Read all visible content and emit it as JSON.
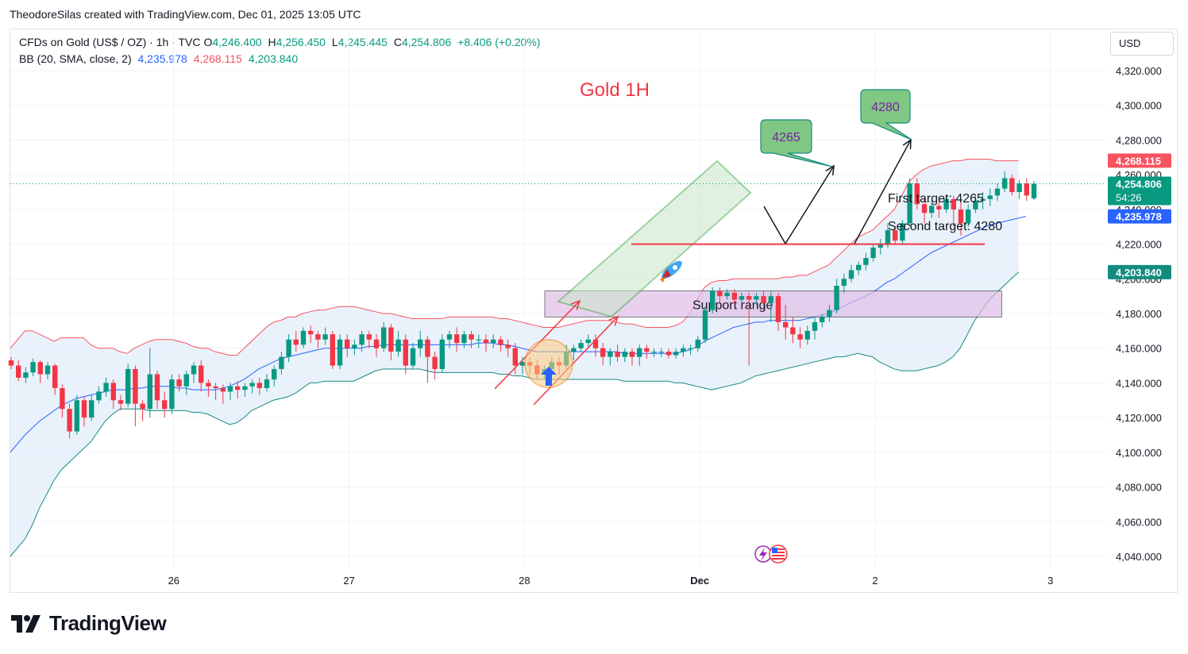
{
  "header": {
    "caption": "TheodoreSilas created with TradingView.com, Dec 01, 2025 13:05 UTC"
  },
  "legend": {
    "symbol": "CFDs on Gold (US$ / OZ) · 1h · TVC",
    "o_label": "O",
    "o_value": "4,246.400",
    "h_label": "H",
    "h_value": "4,256.450",
    "l_label": "L",
    "l_value": "4,245.445",
    "c_label": "C",
    "c_value": "4,254.806",
    "change": "+8.406 (+0.20%)",
    "bb_label": "BB (20, SMA, close, 2)",
    "bb_basis": "4,235.978",
    "bb_upper": "4,268.115",
    "bb_lower": "4,203.840"
  },
  "currency": "USD",
  "brand": "TradingView",
  "colors": {
    "up": "#089981",
    "down": "#f23645",
    "basis": "#2962ff",
    "upper": "#f7525f",
    "lower": "#089981",
    "band_fill": "#e3eefa",
    "channel": "#4caf50",
    "support": "#e1bee7",
    "target_line": "#f23645",
    "label_fill": "#81c784"
  },
  "chart_data": {
    "type": "candlestick",
    "title": "Gold 1H",
    "ylim": [
      4030,
      4330
    ],
    "y_ticks": [
      "4,320.000",
      "4,300.000",
      "4,280.000",
      "4,260.000",
      "4,240.000",
      "4,220.000",
      "4,200.000",
      "4,180.000",
      "4,160.000",
      "4,140.000",
      "4,120.000",
      "4,100.000",
      "4,080.000",
      "4,060.000",
      "4,040.000"
    ],
    "y_tick_values": [
      4320,
      4300,
      4280,
      4260,
      4240,
      4220,
      4200,
      4180,
      4160,
      4140,
      4120,
      4100,
      4080,
      4060,
      4040
    ],
    "x_ticks": [
      "26",
      "27",
      "28",
      "Dec",
      "2",
      "3"
    ],
    "x_tick_hours": [
      24,
      48,
      72,
      96,
      120,
      144
    ],
    "last_price": 4254.806,
    "last_price_label": "4,254.806",
    "countdown": "54:26",
    "price_tags": [
      {
        "value": 4268.115,
        "label": "4,268.115",
        "color": "#f7525f"
      },
      {
        "value": 4235.978,
        "label": "4,235.978",
        "color": "#2962ff"
      },
      {
        "value": 4203.84,
        "label": "4,203.840",
        "color": "#138c7f"
      }
    ],
    "candles": [
      [
        4153,
        4150,
        4148,
        4155
      ],
      [
        4150,
        4143,
        4141,
        4153
      ],
      [
        4143,
        4146,
        4140,
        4149
      ],
      [
        4146,
        4152,
        4144,
        4154
      ],
      [
        4152,
        4145,
        4140,
        4153
      ],
      [
        4145,
        4150,
        4142,
        4152
      ],
      [
        4150,
        4137,
        4133,
        4151
      ],
      [
        4137,
        4125,
        4120,
        4139
      ],
      [
        4125,
        4112,
        4108,
        4128
      ],
      [
        4112,
        4130,
        4110,
        4133
      ],
      [
        4130,
        4120,
        4115,
        4132
      ],
      [
        4120,
        4130,
        4118,
        4133
      ],
      [
        4130,
        4135,
        4128,
        4138
      ],
      [
        4135,
        4140,
        4132,
        4143
      ],
      [
        4140,
        4130,
        4125,
        4142
      ],
      [
        4130,
        4128,
        4124,
        4133
      ],
      [
        4128,
        4148,
        4126,
        4151
      ],
      [
        4148,
        4128,
        4115,
        4150
      ],
      [
        4128,
        4125,
        4118,
        4130
      ],
      [
        4125,
        4145,
        4120,
        4160
      ],
      [
        4145,
        4130,
        4125,
        4147
      ],
      [
        4130,
        4125,
        4120,
        4135
      ],
      [
        4125,
        4142,
        4122,
        4145
      ],
      [
        4142,
        4138,
        4135,
        4145
      ],
      [
        4138,
        4145,
        4133,
        4147
      ],
      [
        4145,
        4150,
        4140,
        4152
      ],
      [
        4150,
        4140,
        4135,
        4153
      ],
      [
        4140,
        4138,
        4132,
        4142
      ],
      [
        4138,
        4137,
        4130,
        4140
      ],
      [
        4137,
        4135,
        4128,
        4139
      ],
      [
        4135,
        4138,
        4130,
        4140
      ],
      [
        4138,
        4136,
        4131,
        4141
      ],
      [
        4136,
        4138,
        4132,
        4140
      ],
      [
        4138,
        4140,
        4134,
        4142
      ],
      [
        4140,
        4137,
        4133,
        4143
      ],
      [
        4137,
        4142,
        4135,
        4145
      ],
      [
        4142,
        4148,
        4138,
        4150
      ],
      [
        4148,
        4155,
        4145,
        4158
      ],
      [
        4155,
        4165,
        4152,
        4168
      ],
      [
        4165,
        4162,
        4158,
        4170
      ],
      [
        4162,
        4170,
        4160,
        4172
      ],
      [
        4170,
        4168,
        4163,
        4173
      ],
      [
        4168,
        4165,
        4160,
        4170
      ],
      [
        4165,
        4168,
        4162,
        4172
      ],
      [
        4168,
        4150,
        4148,
        4170
      ],
      [
        4150,
        4165,
        4148,
        4168
      ],
      [
        4165,
        4160,
        4155,
        4168
      ],
      [
        4160,
        4162,
        4156,
        4165
      ],
      [
        4162,
        4168,
        4158,
        4170
      ],
      [
        4168,
        4165,
        4160,
        4170
      ],
      [
        4165,
        4160,
        4155,
        4168
      ],
      [
        4160,
        4172,
        4158,
        4175
      ],
      [
        4172,
        4158,
        4153,
        4174
      ],
      [
        4158,
        4165,
        4155,
        4170
      ],
      [
        4165,
        4150,
        4145,
        4168
      ],
      [
        4150,
        4160,
        4148,
        4163
      ],
      [
        4160,
        4165,
        4155,
        4170
      ],
      [
        4165,
        4155,
        4140,
        4167
      ],
      [
        4155,
        4148,
        4142,
        4158
      ],
      [
        4148,
        4165,
        4146,
        4168
      ],
      [
        4165,
        4168,
        4160,
        4170
      ],
      [
        4168,
        4163,
        4158,
        4172
      ],
      [
        4163,
        4168,
        4160,
        4170
      ],
      [
        4168,
        4165,
        4160,
        4170
      ],
      [
        4165,
        4165,
        4160,
        4168
      ],
      [
        4165,
        4163,
        4158,
        4168
      ],
      [
        4163,
        4165,
        4160,
        4168
      ],
      [
        4165,
        4162,
        4158,
        4167
      ],
      [
        4162,
        4160,
        4155,
        4165
      ],
      [
        4160,
        4150,
        4145,
        4163
      ],
      [
        4150,
        4152,
        4145,
        4155
      ],
      [
        4152,
        4150,
        4145,
        4155
      ],
      [
        4150,
        4145,
        4142,
        4153
      ],
      [
        4145,
        4148,
        4142,
        4150
      ],
      [
        4148,
        4152,
        4145,
        4155
      ],
      [
        4152,
        4150,
        4145,
        4155
      ],
      [
        4150,
        4158,
        4148,
        4162
      ],
      [
        4158,
        4160,
        4153,
        4162
      ],
      [
        4160,
        4163,
        4158,
        4165
      ],
      [
        4163,
        4165,
        4160,
        4168
      ],
      [
        4165,
        4160,
        4155,
        4168
      ],
      [
        4160,
        4155,
        4150,
        4163
      ],
      [
        4155,
        4158,
        4150,
        4160
      ],
      [
        4158,
        4155,
        4152,
        4162
      ],
      [
        4155,
        4158,
        4152,
        4160
      ],
      [
        4158,
        4155,
        4150,
        4160
      ],
      [
        4155,
        4160,
        4150,
        4162
      ],
      [
        4160,
        4158,
        4154,
        4162
      ],
      [
        4158,
        4158,
        4155,
        4160
      ],
      [
        4158,
        4158,
        4155,
        4160
      ],
      [
        4158,
        4156,
        4154,
        4160
      ],
      [
        4156,
        4158,
        4154,
        4160
      ],
      [
        4158,
        4160,
        4155,
        4162
      ],
      [
        4160,
        4160,
        4156,
        4162
      ],
      [
        4160,
        4165,
        4158,
        4167
      ],
      [
        4165,
        4182,
        4163,
        4184
      ],
      [
        4182,
        4193,
        4180,
        4195
      ],
      [
        4193,
        4190,
        4186,
        4195
      ],
      [
        4190,
        4192,
        4188,
        4194
      ],
      [
        4192,
        4188,
        4185,
        4194
      ],
      [
        4188,
        4190,
        4186,
        4192
      ],
      [
        4190,
        4188,
        4150,
        4192
      ],
      [
        4188,
        4190,
        4185,
        4192
      ],
      [
        4190,
        4186,
        4182,
        4193
      ],
      [
        4186,
        4190,
        4175,
        4193
      ],
      [
        4190,
        4175,
        4170,
        4192
      ],
      [
        4175,
        4172,
        4165,
        4185
      ],
      [
        4172,
        4168,
        4163,
        4178
      ],
      [
        4168,
        4165,
        4160,
        4172
      ],
      [
        4165,
        4170,
        4162,
        4173
      ],
      [
        4170,
        4175,
        4165,
        4178
      ],
      [
        4175,
        4178,
        4172,
        4180
      ],
      [
        4178,
        4182,
        4175,
        4185
      ],
      [
        4182,
        4196,
        4180,
        4200
      ],
      [
        4196,
        4200,
        4192,
        4203
      ],
      [
        4200,
        4205,
        4198,
        4208
      ],
      [
        4205,
        4208,
        4202,
        4210
      ],
      [
        4208,
        4212,
        4205,
        4215
      ],
      [
        4212,
        4218,
        4210,
        4220
      ],
      [
        4218,
        4220,
        4214,
        4223
      ],
      [
        4220,
        4228,
        4218,
        4232
      ],
      [
        4228,
        4222,
        4220,
        4230
      ],
      [
        4222,
        4232,
        4220,
        4234
      ],
      [
        4232,
        4255,
        4230,
        4258
      ],
      [
        4255,
        4243,
        4240,
        4258
      ],
      [
        4243,
        4238,
        4232,
        4246
      ],
      [
        4238,
        4242,
        4235,
        4245
      ],
      [
        4242,
        4240,
        4235,
        4245
      ],
      [
        4240,
        4246,
        4238,
        4248
      ],
      [
        4246,
        4240,
        4230,
        4248
      ],
      [
        4240,
        4232,
        4225,
        4245
      ],
      [
        4232,
        4240,
        4230,
        4243
      ],
      [
        4240,
        4245,
        4238,
        4248
      ],
      [
        4245,
        4246,
        4240,
        4250
      ],
      [
        4246,
        4248,
        4242,
        4252
      ],
      [
        4248,
        4252,
        4245,
        4255
      ],
      [
        4252,
        4258,
        4250,
        4262
      ],
      [
        4258,
        4250,
        4248,
        4260
      ],
      [
        4250,
        4255,
        4246,
        4257
      ],
      [
        4255,
        4248,
        4245,
        4258
      ],
      [
        4246.4,
        4254.806,
        4245.445,
        4256.45
      ]
    ],
    "bands": {
      "start_hour": 0,
      "upper": [
        4160,
        4165,
        4170,
        4170,
        4168,
        4166,
        4164,
        4166,
        4166,
        4166,
        4166,
        4162,
        4160,
        4160,
        4160,
        4158,
        4157,
        4160,
        4162,
        4164,
        4165,
        4165,
        4165,
        4164,
        4163,
        4161,
        4160,
        4160,
        4158,
        4157,
        4156,
        4156,
        4160,
        4164,
        4168,
        4172,
        4175,
        4176,
        4178,
        4178,
        4180,
        4181,
        4182,
        4182,
        4183,
        4184,
        4184,
        4184,
        4183,
        4182,
        4181,
        4180,
        4180,
        4179,
        4178,
        4177,
        4177,
        4177,
        4177,
        4177,
        4178,
        4178,
        4178,
        4178,
        4178,
        4178,
        4178,
        4177,
        4177,
        4176,
        4175,
        4174,
        4173,
        4172,
        4172,
        4172,
        4173,
        4174,
        4175,
        4176,
        4176,
        4176,
        4176,
        4175,
        4174,
        4174,
        4173,
        4172,
        4172,
        4172,
        4172,
        4173,
        4175,
        4180,
        4188,
        4195,
        4198,
        4199,
        4199,
        4200,
        4200,
        4200,
        4200,
        4200,
        4200,
        4200,
        4201,
        4201,
        4202,
        4202,
        4204,
        4206,
        4208,
        4212,
        4216,
        4220,
        4224,
        4226,
        4228,
        4232,
        4236,
        4240,
        4248,
        4256,
        4260,
        4263,
        4265,
        4266,
        4267,
        4268,
        4268,
        4269,
        4269,
        4269,
        4269,
        4268,
        4268,
        4268,
        4268.115
      ],
      "basis": [
        4100,
        4105,
        4110,
        4114,
        4118,
        4121,
        4124,
        4127,
        4129,
        4131,
        4132,
        4133,
        4134,
        4135,
        4136,
        4136,
        4136,
        4137,
        4137,
        4138,
        4138,
        4138,
        4138,
        4137,
        4137,
        4136,
        4136,
        4136,
        4136,
        4137,
        4138,
        4140,
        4142,
        4145,
        4148,
        4150,
        4152,
        4154,
        4155,
        4156,
        4157,
        4158,
        4159,
        4160,
        4160,
        4160,
        4160,
        4160,
        4160,
        4161,
        4161,
        4162,
        4162,
        4162,
        4162,
        4162,
        4162,
        4162,
        4162,
        4162,
        4162,
        4162,
        4162,
        4162,
        4163,
        4163,
        4163,
        4162,
        4162,
        4161,
        4160,
        4159,
        4158,
        4158,
        4158,
        4158,
        4158,
        4158,
        4158,
        4158,
        4158,
        4158,
        4158,
        4158,
        4157,
        4157,
        4157,
        4157,
        4157,
        4157,
        4157,
        4157,
        4158,
        4159,
        4161,
        4164,
        4166,
        4168,
        4170,
        4172,
        4173,
        4174,
        4175,
        4175,
        4176,
        4176,
        4176,
        4176,
        4176,
        4177,
        4178,
        4179,
        4180,
        4182,
        4184,
        4186,
        4188,
        4190,
        4192,
        4195,
        4198,
        4200,
        4203,
        4206,
        4209,
        4212,
        4215,
        4217,
        4219,
        4221,
        4223,
        4225,
        4227,
        4229,
        4231,
        4232,
        4233,
        4234,
        4235,
        4235.978
      ],
      "lower": [
        4040,
        4045,
        4050,
        4058,
        4068,
        4076,
        4084,
        4090,
        4094,
        4098,
        4102,
        4106,
        4112,
        4118,
        4122,
        4125,
        4125,
        4125,
        4125,
        4124,
        4124,
        4124,
        4124,
        4124,
        4124,
        4123,
        4123,
        4122,
        4120,
        4118,
        4116,
        4117,
        4120,
        4124,
        4126,
        4128,
        4130,
        4131,
        4132,
        4134,
        4137,
        4140,
        4140,
        4141,
        4141,
        4141,
        4141,
        4141,
        4143,
        4145,
        4147,
        4148,
        4148,
        4148,
        4148,
        4148,
        4148,
        4147,
        4146,
        4146,
        4146,
        4146,
        4146,
        4146,
        4146,
        4146,
        4146,
        4145,
        4145,
        4144,
        4144,
        4143,
        4142,
        4142,
        4142,
        4142,
        4142,
        4142,
        4142,
        4142,
        4142,
        4142,
        4142,
        4142,
        4141,
        4141,
        4141,
        4141,
        4141,
        4141,
        4141,
        4140,
        4140,
        4139,
        4138,
        4137,
        4136,
        4137,
        4138,
        4139,
        4140,
        4142,
        4144,
        4145,
        4146,
        4147,
        4148,
        4149,
        4150,
        4151,
        4152,
        4153,
        4154,
        4155,
        4155,
        4156,
        4157,
        4156,
        4155,
        4152,
        4150,
        4148,
        4147,
        4147,
        4147,
        4148,
        4149,
        4150,
        4152,
        4155,
        4160,
        4168,
        4176,
        4182,
        4188,
        4192,
        4196,
        4200,
        4203.84
      ]
    },
    "annotations": {
      "channel_label": "",
      "support_label": "Support range",
      "support_low": 4178,
      "support_high": 4193,
      "support_start_hour": 72.5,
      "support_end_hour": 142,
      "breakout_level": 4220,
      "breakout_start_hour": 85,
      "breakout_end_hour": 105,
      "target1_text": "First target: 4265",
      "target2_text": "Second target: 4280",
      "bubble1": "4265",
      "bubble2": "4280",
      "target1": 4265,
      "target2": 4280
    }
  }
}
